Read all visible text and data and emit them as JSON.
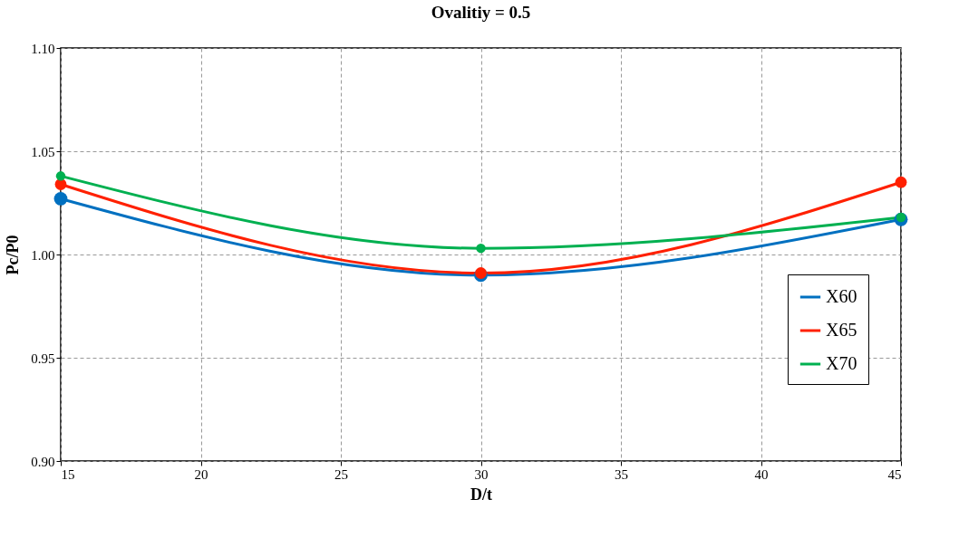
{
  "chart_data": {
    "type": "line",
    "title": "Ovalitiy = 0.5",
    "xlabel": "D/t",
    "ylabel": "Pc/P0",
    "x": [
      15,
      30,
      45
    ],
    "series": [
      {
        "name": "X60",
        "color": "#0070c0",
        "values": [
          1.027,
          0.99,
          1.017
        ]
      },
      {
        "name": "X65",
        "color": "#ff2000",
        "values": [
          1.034,
          0.991,
          1.035
        ]
      },
      {
        "name": "X70",
        "color": "#00b050",
        "values": [
          1.038,
          1.003,
          1.018
        ]
      }
    ],
    "xlim": [
      15,
      45
    ],
    "xticks": [
      15,
      20,
      25,
      30,
      35,
      40,
      45
    ],
    "ylim": [
      0.9,
      1.1
    ],
    "yticks": [
      {
        "value": 0.9,
        "label": "0.90"
      },
      {
        "value": 0.95,
        "label": "0.95"
      },
      {
        "value": 1.0,
        "label": "1.00"
      },
      {
        "value": 1.05,
        "label": "1.05"
      },
      {
        "value": 1.1,
        "label": "1.10"
      }
    ],
    "grid": true,
    "legend": "right",
    "marker": "circle",
    "line_style": "solid"
  }
}
